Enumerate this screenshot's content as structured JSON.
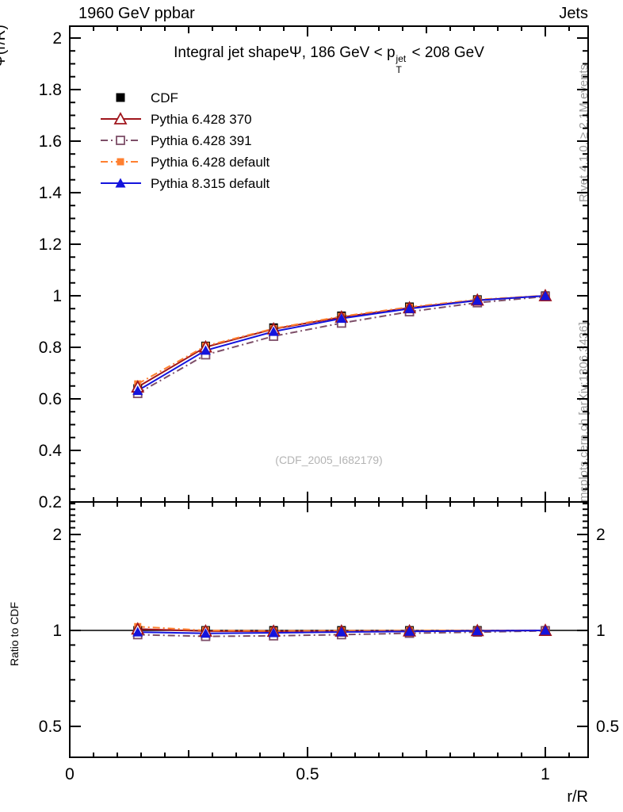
{
  "header": {
    "left": "1960 GeV ppbar",
    "right": "Jets"
  },
  "side_captions": {
    "top_right": "Rivet 4.1.0, ≥ 2.1M events",
    "bottom_right": "mcplots.cern.ch [arXiv:1306.3436]"
  },
  "watermark": "(CDF_2005_I682179)",
  "chart_data": {
    "type": "line",
    "title": {
      "prefix": "Integral jet shape",
      "psi": "Ψ",
      "mid": ", 186 GeV < p",
      "sup": "jet",
      "sub": "T",
      "suffix": " < 208 GeV"
    },
    "xlabel": "r/R",
    "ylabel_main": "Ψ(r/R)",
    "ylabel_ratio": "Ratio to CDF",
    "x": [
      0.1429,
      0.2857,
      0.4286,
      0.5714,
      0.7143,
      0.8571,
      1.0
    ],
    "series": [
      {
        "name": "CDF",
        "color": "#000000",
        "line": "none",
        "marker": "square_filled",
        "marker_size": 11,
        "values": [
          0.64,
          0.805,
          0.876,
          0.922,
          0.957,
          0.985,
          1.0
        ],
        "ratio": [
          1.0,
          1.0,
          1.0,
          1.0,
          1.0,
          1.0,
          1.0
        ]
      },
      {
        "name": "Pythia 6.428 370",
        "color": "#a0151c",
        "line": "solid",
        "marker": "triangle_open",
        "marker_size": 12,
        "values": [
          0.646,
          0.801,
          0.871,
          0.917,
          0.953,
          0.983,
          1.0
        ],
        "ratio": [
          1.01,
          0.995,
          0.994,
          0.995,
          0.996,
          0.998,
          1.0
        ]
      },
      {
        "name": "Pythia 6.428 391",
        "color": "#7d4e68",
        "line": "dashdot",
        "marker": "square_open",
        "marker_size": 10,
        "values": [
          0.621,
          0.771,
          0.843,
          0.894,
          0.938,
          0.973,
          0.997
        ],
        "ratio": [
          0.97,
          0.958,
          0.962,
          0.97,
          0.98,
          0.988,
          0.997
        ]
      },
      {
        "name": "Pythia 6.428 default",
        "color": "#ff8030",
        "line": "dashdot",
        "marker": "square_filled",
        "marker_size": 9,
        "values": [
          0.658,
          0.805,
          0.873,
          0.92,
          0.956,
          0.985,
          1.001
        ],
        "ratio": [
          1.028,
          1.0,
          0.997,
          0.998,
          0.999,
          1.0,
          1.001
        ]
      },
      {
        "name": "Pythia 8.315 default",
        "color": "#1414dd",
        "line": "solid",
        "marker": "triangle_filled",
        "marker_size": 11,
        "values": [
          0.632,
          0.788,
          0.861,
          0.912,
          0.95,
          0.982,
          1.0
        ],
        "ratio": [
          0.988,
          0.979,
          0.983,
          0.989,
          0.993,
          0.997,
          1.0
        ]
      }
    ],
    "axes": {
      "x": {
        "min": 0,
        "max": 1.09,
        "majors": [
          0,
          0.5,
          1
        ],
        "major_labels": [
          "0",
          "0.5",
          "1"
        ],
        "medium": [
          0.25,
          0.75
        ],
        "minor_step": 0.05
      },
      "y_main": {
        "min": 0.2,
        "max": 2.046,
        "majors": [
          0.2,
          0.4,
          0.6,
          0.8,
          1.0,
          1.2,
          1.4,
          1.6,
          1.8,
          2.0
        ],
        "major_labels": [
          "0.2",
          "0.4",
          "0.6",
          "0.8",
          "1",
          "1.2",
          "1.4",
          "1.6",
          "1.8",
          "2"
        ],
        "minor_step": 0.05
      },
      "y_ratio": {
        "min": 0.4,
        "max": 2.53,
        "scale": "log",
        "majors": [
          0.5,
          1,
          2
        ],
        "major_labels": [
          "0.5",
          "1",
          "2"
        ],
        "minors": [
          0.4,
          0.6,
          0.7,
          0.8,
          0.9,
          1.1,
          1.2,
          1.3,
          1.4,
          1.5,
          1.6,
          1.7,
          1.8,
          1.9,
          2.1,
          2.2,
          2.3,
          2.4,
          2.5
        ]
      },
      "grid": false,
      "ratio_reference_line": 1.0
    },
    "legend_position": "top-left-inside"
  }
}
